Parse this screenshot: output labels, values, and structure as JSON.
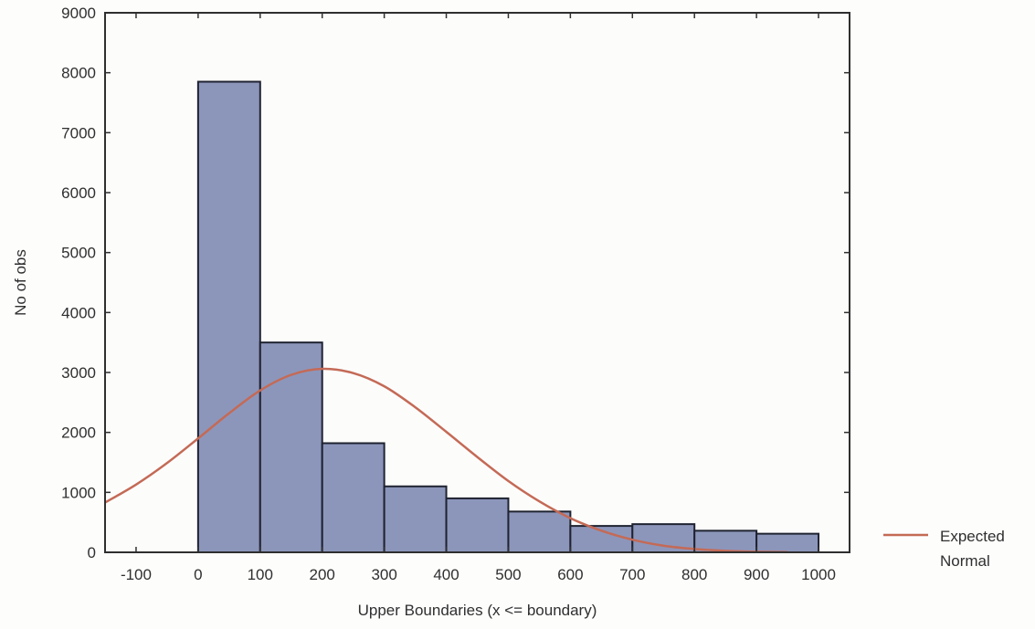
{
  "chart_data": {
    "type": "bar",
    "title": "",
    "xlabel": "Upper Boundaries (x <= boundary)",
    "ylabel": "No of obs",
    "x_axis": {
      "min": -150,
      "max": 1050,
      "ticks": [
        -100,
        0,
        100,
        200,
        300,
        400,
        500,
        600,
        700,
        800,
        900,
        1000
      ],
      "tick_labels": [
        "-100",
        "0",
        "100",
        "200",
        "300",
        "400",
        "500",
        "600",
        "700",
        "800",
        "900",
        "1000"
      ]
    },
    "y_axis": {
      "min": 0,
      "max": 9000,
      "ticks": [
        0,
        1000,
        2000,
        3000,
        4000,
        5000,
        6000,
        7000,
        8000,
        9000
      ],
      "tick_labels": [
        "0",
        "1000",
        "2000",
        "3000",
        "4000",
        "5000",
        "6000",
        "7000",
        "8000",
        "9000"
      ]
    },
    "bins": [
      {
        "from": 0,
        "to": 100,
        "value": 7850
      },
      {
        "from": 100,
        "to": 200,
        "value": 3500
      },
      {
        "from": 200,
        "to": 300,
        "value": 1820
      },
      {
        "from": 300,
        "to": 400,
        "value": 1100
      },
      {
        "from": 400,
        "to": 500,
        "value": 900
      },
      {
        "from": 500,
        "to": 600,
        "value": 680
      },
      {
        "from": 600,
        "to": 700,
        "value": 440
      },
      {
        "from": 700,
        "to": 800,
        "value": 470
      },
      {
        "from": 800,
        "to": 900,
        "value": 360
      },
      {
        "from": 900,
        "to": 1000,
        "value": 310
      }
    ],
    "series": [
      {
        "name": "Expected Normal",
        "type": "line",
        "x": [
          -150,
          -100,
          -50,
          0,
          50,
          100,
          150,
          200,
          250,
          300,
          350,
          400,
          450,
          500,
          550,
          600,
          650,
          700,
          750,
          800,
          850,
          900,
          950
        ],
        "values": [
          830,
          1130,
          1490,
          1900,
          2320,
          2700,
          2960,
          3060,
          2990,
          2770,
          2420,
          2010,
          1590,
          1190,
          850,
          570,
          360,
          210,
          110,
          55,
          25,
          10,
          4
        ]
      }
    ],
    "legend": {
      "position": "bottom-right",
      "entries": [
        "Expected",
        "Normal"
      ]
    },
    "grid": false,
    "colors": {
      "bar_fill": "#8c96bb",
      "bar_stroke": "#1f2330",
      "curve": "#c46a56",
      "axis": "#2f2f2f"
    }
  }
}
